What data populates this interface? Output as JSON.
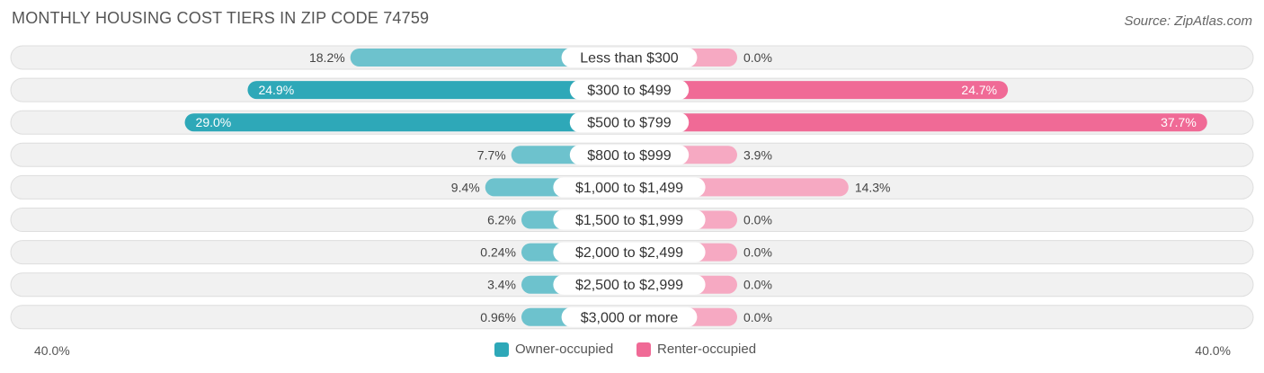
{
  "chart_data": {
    "type": "bar",
    "orientation": "horizontal-diverging",
    "title": "MONTHLY HOUSING COST TIERS IN ZIP CODE 74759",
    "source": "Source: ZipAtlas.com",
    "categories": [
      "Less than $300",
      "$300 to $499",
      "$500 to $799",
      "$800 to $999",
      "$1,000 to $1,499",
      "$1,500 to $1,999",
      "$2,000 to $2,499",
      "$2,500 to $2,999",
      "$3,000 or more"
    ],
    "series": [
      {
        "name": "Owner-occupied",
        "color": "#2ea8b8",
        "values": [
          18.2,
          24.9,
          29.0,
          7.7,
          9.4,
          6.2,
          0.24,
          3.4,
          0.96
        ],
        "labels": [
          "18.2%",
          "24.9%",
          "29.0%",
          "7.7%",
          "9.4%",
          "6.2%",
          "0.24%",
          "3.4%",
          "0.96%"
        ]
      },
      {
        "name": "Renter-occupied",
        "color": "#f06a96",
        "values": [
          0.0,
          24.7,
          37.7,
          3.9,
          14.3,
          0.0,
          0.0,
          0.0,
          0.0
        ],
        "labels": [
          "0.0%",
          "24.7%",
          "37.7%",
          "3.9%",
          "14.3%",
          "0.0%",
          "0.0%",
          "0.0%",
          "0.0%"
        ]
      }
    ],
    "xlim": [
      -40,
      40
    ],
    "axis_left_label": "40.0%",
    "axis_right_label": "40.0%",
    "legend_position": "bottom-center",
    "grid": false
  }
}
